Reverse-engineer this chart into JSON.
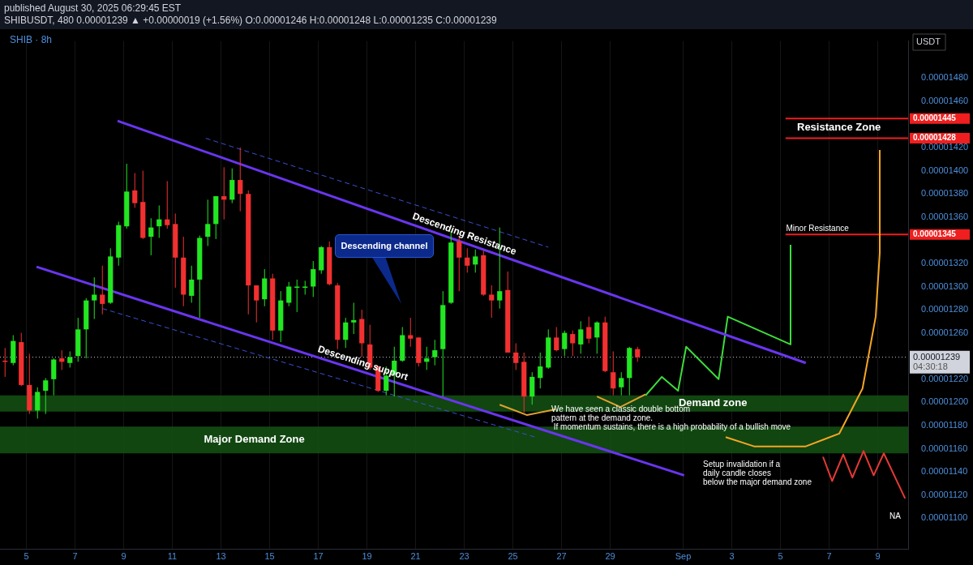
{
  "chart_data": {
    "type": "candlestick",
    "title": "SHIB · 8h",
    "subtitle": "SHIBUSDT, 480 0.00001239 ▲ +0.00000019 (+1.56%) O:0.00001246 H:0.00001248 L:0.00001235 C:0.00001239",
    "ylabel": "USDT",
    "x": [
      "2025-08-04T03:00",
      "2025-08-04T11:00",
      "2025-08-04T19:00",
      "2025-08-05T03:00",
      "2025-08-05T11:00",
      "2025-08-05T19:00",
      "2025-08-06T03:00",
      "2025-08-06T11:00",
      "2025-08-06T19:00",
      "2025-08-07T03:00",
      "2025-08-07T11:00",
      "2025-08-07T19:00",
      "2025-08-08T03:00",
      "2025-08-08T11:00",
      "2025-08-08T19:00",
      "2025-08-09T03:00",
      "2025-08-09T11:00",
      "2025-08-09T19:00",
      "2025-08-10T03:00",
      "2025-08-10T11:00",
      "2025-08-10T19:00",
      "2025-08-11T03:00",
      "2025-08-11T11:00",
      "2025-08-11T19:00",
      "2025-08-12T03:00",
      "2025-08-12T11:00",
      "2025-08-12T19:00",
      "2025-08-13T03:00",
      "2025-08-13T11:00",
      "2025-08-13T19:00",
      "2025-08-14T03:00",
      "2025-08-14T11:00",
      "2025-08-14T19:00",
      "2025-08-15T03:00",
      "2025-08-15T11:00",
      "2025-08-15T19:00",
      "2025-08-16T03:00",
      "2025-08-16T11:00",
      "2025-08-16T19:00",
      "2025-08-17T03:00",
      "2025-08-17T11:00",
      "2025-08-17T19:00",
      "2025-08-18T03:00",
      "2025-08-18T11:00",
      "2025-08-18T19:00",
      "2025-08-19T03:00",
      "2025-08-19T11:00",
      "2025-08-19T19:00",
      "2025-08-20T03:00",
      "2025-08-20T11:00",
      "2025-08-20T19:00",
      "2025-08-21T03:00",
      "2025-08-21T11:00",
      "2025-08-21T19:00",
      "2025-08-22T03:00",
      "2025-08-22T11:00",
      "2025-08-22T19:00",
      "2025-08-23T03:00",
      "2025-08-23T11:00",
      "2025-08-23T19:00",
      "2025-08-24T03:00",
      "2025-08-24T11:00",
      "2025-08-24T19:00",
      "2025-08-25T03:00",
      "2025-08-25T11:00",
      "2025-08-25T19:00",
      "2025-08-26T03:00",
      "2025-08-26T11:00",
      "2025-08-26T19:00",
      "2025-08-27T03:00",
      "2025-08-27T11:00",
      "2025-08-27T19:00",
      "2025-08-28T03:00",
      "2025-08-28T11:00",
      "2025-08-28T19:00",
      "2025-08-29T03:00",
      "2025-08-29T11:00",
      "2025-08-29T19:00",
      "2025-08-30T03:00"
    ],
    "ohlc": [
      [
        1.236e-05,
        1.247e-05,
        1.222e-05,
        1.235e-05
      ],
      [
        1.234e-05,
        1.258e-05,
        1.232e-05,
        1.253e-05
      ],
      [
        1.252e-05,
        1.26e-05,
        1.214e-05,
        1.215e-05
      ],
      [
        1.215e-05,
        1.242e-05,
        1.19e-05,
        1.193e-05
      ],
      [
        1.193e-05,
        1.213e-05,
        1.186e-05,
        1.209e-05
      ],
      [
        1.21e-05,
        1.221e-05,
        1.19e-05,
        1.219e-05
      ],
      [
        1.22e-05,
        1.238e-05,
        1.206e-05,
        1.237e-05
      ],
      [
        1.238e-05,
        1.245e-05,
        1.228e-05,
        1.235e-05
      ],
      [
        1.234e-05,
        1.244e-05,
        1.23e-05,
        1.239e-05
      ],
      [
        1.24e-05,
        1.273e-05,
        1.235e-05,
        1.263e-05
      ],
      [
        1.263e-05,
        1.29e-05,
        1.238e-05,
        1.288e-05
      ],
      [
        1.288e-05,
        1.308e-05,
        1.272e-05,
        1.293e-05
      ],
      [
        1.293e-05,
        1.318e-05,
        1.276e-05,
        1.285e-05
      ],
      [
        1.286e-05,
        1.333e-05,
        1.285e-05,
        1.326e-05
      ],
      [
        1.325e-05,
        1.356e-05,
        1.318e-05,
        1.353e-05
      ],
      [
        1.352e-05,
        1.406e-05,
        1.35e-05,
        1.382e-05
      ],
      [
        1.383e-05,
        1.398e-05,
        1.368e-05,
        1.372e-05
      ],
      [
        1.373e-05,
        1.4e-05,
        1.341e-05,
        1.342e-05
      ],
      [
        1.343e-05,
        1.359e-05,
        1.327e-05,
        1.351e-05
      ],
      [
        1.352e-05,
        1.37e-05,
        1.342e-05,
        1.358e-05
      ],
      [
        1.358e-05,
        1.391e-05,
        1.35e-05,
        1.353e-05
      ],
      [
        1.354e-05,
        1.363e-05,
        1.299e-05,
        1.325e-05
      ],
      [
        1.325e-05,
        1.343e-05,
        1.283e-05,
        1.293e-05
      ],
      [
        1.292e-05,
        1.318e-05,
        1.286e-05,
        1.306e-05
      ],
      [
        1.306e-05,
        1.344e-05,
        1.273e-05,
        1.342e-05
      ],
      [
        1.343e-05,
        1.375e-05,
        1.335e-05,
        1.354e-05
      ],
      [
        1.354e-05,
        1.378e-05,
        1.341e-05,
        1.378e-05
      ],
      [
        1.378e-05,
        1.403e-05,
        1.358e-05,
        1.375e-05
      ],
      [
        1.375e-05,
        1.402e-05,
        1.372e-05,
        1.392e-05
      ],
      [
        1.392e-05,
        1.42e-05,
        1.365e-05,
        1.38e-05
      ],
      [
        1.38e-05,
        1.383e-05,
        1.276e-05,
        1.301e-05
      ],
      [
        1.301e-05,
        1.301e-05,
        1.269e-05,
        1.288e-05
      ],
      [
        1.289e-05,
        1.315e-05,
        1.283e-05,
        1.307e-05
      ],
      [
        1.307e-05,
        1.311e-05,
        1.254e-05,
        1.262e-05
      ],
      [
        1.262e-05,
        1.296e-05,
        1.252e-05,
        1.288e-05
      ],
      [
        1.286e-05,
        1.304e-05,
        1.283e-05,
        1.3e-05
      ],
      [
        1.3e-05,
        1.306e-05,
        1.278e-05,
        1.3e-05
      ],
      [
        1.299e-05,
        1.305e-05,
        1.293e-05,
        1.3e-05
      ],
      [
        1.3e-05,
        1.322e-05,
        1.291e-05,
        1.315e-05
      ],
      [
        1.314e-05,
        1.335e-05,
        1.311e-05,
        1.334e-05
      ],
      [
        1.334e-05,
        1.339e-05,
        1.301e-05,
        1.302e-05
      ],
      [
        1.301e-05,
        1.303e-05,
        1.246e-05,
        1.254e-05
      ],
      [
        1.254e-05,
        1.273e-05,
        1.247e-05,
        1.269e-05
      ],
      [
        1.269e-05,
        1.286e-05,
        1.259e-05,
        1.271e-05
      ],
      [
        1.272e-05,
        1.28e-05,
        1.239e-05,
        1.251e-05
      ],
      [
        1.25e-05,
        1.267e-05,
        1.228e-05,
        1.23e-05
      ],
      [
        1.231e-05,
        1.231e-05,
        1.209e-05,
        1.21e-05
      ],
      [
        1.21e-05,
        1.231e-05,
        1.206e-05,
        1.223e-05
      ],
      [
        1.224e-05,
        1.248e-05,
        1.205e-05,
        1.236e-05
      ],
      [
        1.236e-05,
        1.265e-05,
        1.235e-05,
        1.258e-05
      ],
      [
        1.258e-05,
        1.273e-05,
        1.248e-05,
        1.255e-05
      ],
      [
        1.256e-05,
        1.256e-05,
        1.231e-05,
        1.234e-05
      ],
      [
        1.235e-05,
        1.248e-05,
        1.228e-05,
        1.238e-05
      ],
      [
        1.239e-05,
        1.254e-05,
        1.232e-05,
        1.245e-05
      ],
      [
        1.246e-05,
        1.296e-05,
        1.205e-05,
        1.284e-05
      ],
      [
        1.286e-05,
        1.348e-05,
        1.285e-05,
        1.338e-05
      ],
      [
        1.339e-05,
        1.343e-05,
        1.296e-05,
        1.325e-05
      ],
      [
        1.325e-05,
        1.333e-05,
        1.312e-05,
        1.318e-05
      ],
      [
        1.319e-05,
        1.332e-05,
        1.312e-05,
        1.326e-05
      ],
      [
        1.327e-05,
        1.331e-05,
        1.292e-05,
        1.293e-05
      ],
      [
        1.293e-05,
        1.301e-05,
        1.273e-05,
        1.288e-05
      ],
      [
        1.288e-05,
        1.351e-05,
        1.281e-05,
        1.296e-05
      ],
      [
        1.297e-05,
        1.313e-05,
        1.243e-05,
        1.243e-05
      ],
      [
        1.243e-05,
        1.251e-05,
        1.228e-05,
        1.234e-05
      ],
      [
        1.235e-05,
        1.243e-05,
        1.191e-05,
        1.205e-05
      ],
      [
        1.205e-05,
        1.226e-05,
        1.198e-05,
        1.222e-05
      ],
      [
        1.221e-05,
        1.243e-05,
        1.212e-05,
        1.231e-05
      ],
      [
        1.23e-05,
        1.263e-05,
        1.229e-05,
        1.256e-05
      ],
      [
        1.256e-05,
        1.265e-05,
        1.244e-05,
        1.245e-05
      ],
      [
        1.246e-05,
        1.262e-05,
        1.24e-05,
        1.26e-05
      ],
      [
        1.259e-05,
        1.262e-05,
        1.24e-05,
        1.251e-05
      ],
      [
        1.25e-05,
        1.27e-05,
        1.242e-05,
        1.263e-05
      ],
      [
        1.265e-05,
        1.274e-05,
        1.251e-05,
        1.255e-05
      ],
      [
        1.256e-05,
        1.27e-05,
        1.242e-05,
        1.269e-05
      ],
      [
        1.269e-05,
        1.274e-05,
        1.226e-05,
        1.227e-05
      ],
      [
        1.226e-05,
        1.244e-05,
        1.206e-05,
        1.212e-05
      ],
      [
        1.213e-05,
        1.226e-05,
        1.206e-05,
        1.221e-05
      ],
      [
        1.221e-05,
        1.248e-05,
        1.206e-05,
        1.247e-05
      ],
      [
        1.246e-05,
        1.248e-05,
        1.235e-05,
        1.239e-05
      ]
    ],
    "colors": [
      "#f23030",
      "#22e622",
      "#f23030",
      "#f23030",
      "#22e622",
      "#22e622",
      "#22e622",
      "#f23030",
      "#22e622",
      "#22e622",
      "#22e622",
      "#22e622",
      "#f23030",
      "#22e622",
      "#22e622",
      "#22e622",
      "#f23030",
      "#f23030",
      "#22e622",
      "#22e622",
      "#f23030",
      "#f23030",
      "#f23030",
      "#22e622",
      "#22e622",
      "#22e622",
      "#22e622",
      "#f23030",
      "#22e622",
      "#f23030",
      "#f23030",
      "#f23030",
      "#22e622",
      "#f23030",
      "#22e622",
      "#22e622",
      "#22e622",
      "#22e622",
      "#22e622",
      "#22e622",
      "#f23030",
      "#f23030",
      "#22e622",
      "#22e622",
      "#f23030",
      "#f23030",
      "#f23030",
      "#22e622",
      "#22e622",
      "#22e622",
      "#f23030",
      "#f23030",
      "#22e622",
      "#22e622",
      "#22e622",
      "#22e622",
      "#f23030",
      "#f23030",
      "#22e622",
      "#f23030",
      "#f23030",
      "#22e622",
      "#f23030",
      "#f23030",
      "#f23030",
      "#22e622",
      "#22e622",
      "#22e622",
      "#f23030",
      "#22e622",
      "#f23030",
      "#22e622",
      "#f23030",
      "#22e622",
      "#f23030",
      "#f23030",
      "#22e622",
      "#22e622",
      "#f23030"
    ],
    "series": [
      {
        "type": "line",
        "name": "Descending Resistance",
        "color": "#6a35f0",
        "x": [
          "2025-08-08T18:00",
          "2025-09-06T01:00"
        ],
        "values": [
          1.443e-05,
          1.234e-05
        ]
      },
      {
        "type": "line",
        "name": "Descending support",
        "color": "#6a35f0",
        "x": [
          "2025-08-05T10:00",
          "2025-09-01T01:00"
        ],
        "values": [
          1.317e-05,
          1.137e-05
        ]
      },
      {
        "type": "line",
        "color": "#3b4fd6",
        "line_style": "dashed",
        "x": [
          "2025-08-12T09:00",
          "2025-08-26T11:00"
        ],
        "values": [
          1.428e-05,
          1.334e-05
        ]
      },
      {
        "type": "line",
        "color": "#3b4fd6",
        "line_style": "dashed",
        "x": [
          "2025-08-08T03:00",
          "2025-08-25T22:00"
        ],
        "values": [
          1.281e-05,
          1.17e-05
        ]
      },
      {
        "type": "line",
        "color": "#3ddc3d",
        "x": [
          "2025-08-30T11:00",
          "2025-08-31T03:00",
          "2025-08-31T19:00",
          "2025-09-01T03:00",
          "2025-09-02T11:00",
          "2025-09-02T20:00",
          "2025-09-05T10:00",
          "2025-09-05T10:00"
        ],
        "values": [
          1.206e-05,
          1.222e-05,
          1.21e-05,
          1.248e-05,
          1.22e-05,
          1.274e-05,
          1.25e-05,
          1.336e-05
        ]
      },
      {
        "type": "line",
        "color": "#f5a623",
        "x": [
          "2025-09-02T18:00",
          "2025-09-03T22:00",
          "2025-09-06T01:00",
          "2025-09-07T10:00",
          "2025-09-08T09:00",
          "2025-09-08T22:00",
          "2025-09-09T02:00",
          "2025-09-09T02:00"
        ],
        "values": [
          1.17e-05,
          1.162e-05,
          1.162e-05,
          1.173e-05,
          1.212e-05,
          1.274e-05,
          1.329e-05,
          1.418e-05
        ]
      },
      {
        "type": "line",
        "color": "#e53935",
        "x": [
          "2025-09-06T18:00",
          "2025-09-07T03:00",
          "2025-09-07T14:00",
          "2025-09-07T23:00",
          "2025-09-08T10:00",
          "2025-09-08T20:00",
          "2025-09-09T06:00",
          "2025-09-10T03:00"
        ],
        "values": [
          1.153e-05,
          1.132e-05,
          1.155e-05,
          1.135e-05,
          1.158e-05,
          1.137e-05,
          1.156e-05,
          1.117e-05
        ]
      },
      {
        "type": "line",
        "color": "#e0a030",
        "x": [
          "2025-08-24T11:00",
          "2025-08-25T14:00",
          "2025-08-26T18:00"
        ],
        "values": [
          1.198e-05,
          1.189e-05,
          1.194e-05
        ]
      },
      {
        "type": "line",
        "color": "#e0a030",
        "x": [
          "2025-08-28T11:00",
          "2025-08-29T10:00",
          "2025-08-30T11:00"
        ],
        "values": [
          1.205e-05,
          1.196e-05,
          1.207e-05
        ]
      }
    ],
    "marker": "none",
    "xlim": [
      "2025-08-03T22:00",
      "2025-09-10T06:00"
    ],
    "xticks": [
      {
        "value": "2025-08-05",
        "label": "5"
      },
      {
        "value": "2025-08-07",
        "label": "7"
      },
      {
        "value": "2025-08-09",
        "label": "9"
      },
      {
        "value": "2025-08-11",
        "label": "11"
      },
      {
        "value": "2025-08-13",
        "label": "13"
      },
      {
        "value": "2025-08-15",
        "label": "15"
      },
      {
        "value": "2025-08-17",
        "label": "17"
      },
      {
        "value": "2025-08-19",
        "label": "19"
      },
      {
        "value": "2025-08-21",
        "label": "21"
      },
      {
        "value": "2025-08-23",
        "label": "23"
      },
      {
        "value": "2025-08-25",
        "label": "25"
      },
      {
        "value": "2025-08-27",
        "label": "27"
      },
      {
        "value": "2025-08-29",
        "label": "29"
      },
      {
        "value": "2025-09-01",
        "label": "Sep"
      },
      {
        "value": "2025-09-03",
        "label": "3"
      },
      {
        "value": "2025-09-05",
        "label": "5"
      },
      {
        "value": "2025-09-07",
        "label": "7"
      },
      {
        "value": "2025-09-09",
        "label": "9"
      }
    ],
    "ylim": [
      1.073e-05,
      1.512e-05
    ],
    "yticks": [
      {
        "value": 1.1e-05,
        "label": "0.00001100"
      },
      {
        "value": 1.12e-05,
        "label": "0.00001120"
      },
      {
        "value": 1.14e-05,
        "label": "0.00001140"
      },
      {
        "value": 1.16e-05,
        "label": "0.00001160"
      },
      {
        "value": 1.18e-05,
        "label": "0.00001180"
      },
      {
        "value": 1.2e-05,
        "label": "0.00001200"
      },
      {
        "value": 1.22e-05,
        "label": "0.00001220"
      },
      {
        "value": 1.26e-05,
        "label": "0.00001260"
      },
      {
        "value": 1.28e-05,
        "label": "0.00001280"
      },
      {
        "value": 1.3e-05,
        "label": "0.00001300"
      },
      {
        "value": 1.32e-05,
        "label": "0.00001320"
      },
      {
        "value": 1.36e-05,
        "label": "0.00001360"
      },
      {
        "value": 1.38e-05,
        "label": "0.00001380"
      },
      {
        "value": 1.4e-05,
        "label": "0.00001400"
      },
      {
        "value": 1.42e-05,
        "label": "0.00001420"
      },
      {
        "value": 1.46e-05,
        "label": "0.00001460"
      },
      {
        "value": 1.48e-05,
        "label": "0.00001480"
      }
    ],
    "ref_lines": [
      {
        "axis": "y",
        "value": 1.239e-05,
        "label": "0.00001239",
        "color": "#c8cad0",
        "line_style": "dotted"
      },
      {
        "axis": "y",
        "value": 1.445e-05,
        "label": "0.00001445",
        "color": "#f01e1e"
      },
      {
        "axis": "y",
        "value": 1.428e-05,
        "label": "0.00001428",
        "color": "#f01e1e"
      },
      {
        "axis": "y",
        "value": 1.345e-05,
        "label": "0.00001345",
        "color": "#f01e1e"
      }
    ],
    "bands": [
      {
        "axis": "y",
        "from": 1.192e-05,
        "to": 1.206e-05,
        "label": "Demand zone",
        "color": "#145214"
      },
      {
        "axis": "y",
        "from": 1.156e-05,
        "to": 1.179e-05,
        "label": "Major Demand Zone",
        "color": "#145214"
      }
    ],
    "annotations": [
      {
        "text": "Minor Resistance",
        "x": "2025-09-05T04:00",
        "y": 1.345e-05
      },
      "Descending channel",
      "Resistance Zone",
      "We have seen a classic double bottom\npattern at the demand zone.\n If momentum sustains, there is a high probability of a bullish move",
      "Setup invalidation if a\ndaily candle closes\nbelow the major demand zone",
      "NA",
      "04:30:18",
      "published August 30, 2025 06:29:45 EST"
    ],
    "grid": "x",
    "legend": false
  }
}
